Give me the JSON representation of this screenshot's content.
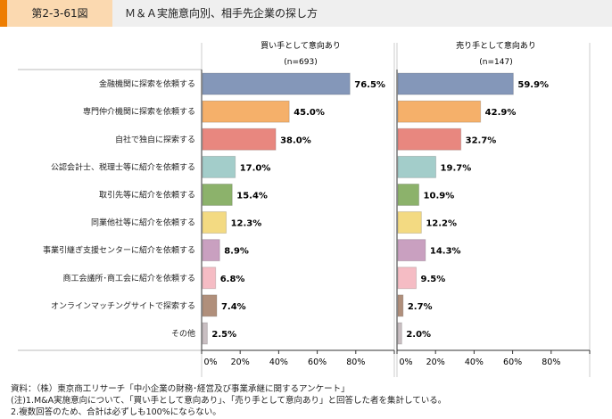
{
  "figure_number": "第2-3-61図",
  "title": "Ｍ＆Ａ実施意向別、相手先企業の探し方",
  "chart_data": [
    {
      "type": "bar",
      "orientation": "horizontal",
      "title": "買い手として意向あり",
      "subtitle": "(n=693)",
      "categories": [
        "金融機関に探索を依頼する",
        "専門仲介機関に探索を依頼する",
        "自社で独自に探索する",
        "公認会計士、税理士等に紹介を依頼する",
        "取引先等に紹介を依頼する",
        "同業他社等に紹介を依頼する",
        "事業引継ぎ支援センターに紹介を依頼する",
        "商工会議所･商工会に紹介を依頼する",
        "オンラインマッチングサイトで探索する",
        "その他"
      ],
      "values": [
        76.5,
        45.0,
        38.0,
        17.0,
        15.4,
        12.3,
        8.9,
        6.8,
        7.4,
        2.5
      ],
      "labels": [
        "76.5%",
        "45.0%",
        "38.0%",
        "17.0%",
        "15.4%",
        "12.3%",
        "8.9%",
        "6.8%",
        "7.4%",
        "2.5%"
      ],
      "xlim": [
        0,
        100
      ],
      "ticks": [
        "0%",
        "20%",
        "40%",
        "60%",
        "80%"
      ]
    },
    {
      "type": "bar",
      "orientation": "horizontal",
      "title": "売り手として意向あり",
      "subtitle": "(n=147)",
      "values": [
        59.9,
        42.9,
        32.7,
        19.7,
        10.9,
        12.2,
        14.3,
        9.5,
        2.7,
        2.0
      ],
      "labels": [
        "59.9%",
        "42.9%",
        "32.7%",
        "19.7%",
        "10.9%",
        "12.2%",
        "14.3%",
        "9.5%",
        "2.7%",
        "2.0%"
      ],
      "xlim": [
        0,
        100
      ],
      "ticks": [
        "0%",
        "20%",
        "40%",
        "60%",
        "80%"
      ]
    }
  ],
  "colors": [
    "#8497b9",
    "#f5b06a",
    "#e8877f",
    "#a3cdca",
    "#8cb26b",
    "#f3da82",
    "#c9a0c0",
    "#f5bcc4",
    "#b08f7b",
    "#c9bfc2"
  ],
  "notes": [
    "資料：（株）東京商工リサーチ「中小企業の財務･経営及び事業承継に関するアンケート」",
    "(注)1.M&A実施意向について、「買い手として意向あり」、「売り手として意向あり」と回答した者を集計している。",
    "2.複数回答のため、合計は必ずしも100%にならない。"
  ]
}
